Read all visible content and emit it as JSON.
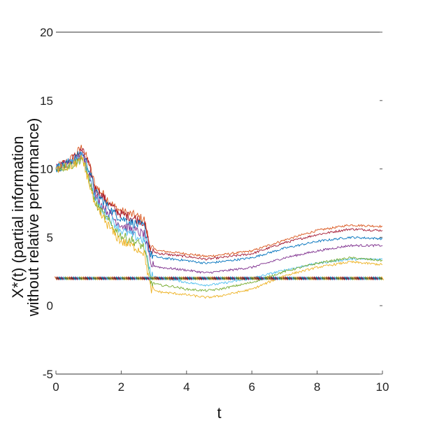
{
  "chart_data": {
    "type": "line",
    "title": "",
    "xlabel": "t",
    "ylabel_lines": [
      "X*(t) (partial information",
      "without relative performance)"
    ],
    "xlim": [
      0,
      10
    ],
    "ylim": [
      -5,
      20
    ],
    "xticks": [
      0,
      2,
      4,
      6,
      8,
      10
    ],
    "yticks": [
      -5,
      0,
      5,
      10,
      15,
      20
    ],
    "grid": false,
    "legend": "none",
    "reference_line": {
      "y": 2,
      "style": "dense-markers"
    },
    "series": [
      {
        "color": "#d95319",
        "points": [
          [
            0,
            10
          ],
          [
            0.5,
            10.8
          ],
          [
            0.8,
            11.6
          ],
          [
            1,
            10.5
          ],
          [
            1.2,
            8.8
          ],
          [
            1.5,
            8
          ],
          [
            1.8,
            7.2
          ],
          [
            2,
            6.9
          ],
          [
            2.4,
            6.6
          ],
          [
            2.7,
            6.3
          ],
          [
            2.9,
            4.2
          ],
          [
            3.2,
            4
          ],
          [
            3.6,
            3.9
          ],
          [
            4,
            3.8
          ],
          [
            4.6,
            3.6
          ],
          [
            5,
            3.7
          ],
          [
            6,
            4
          ],
          [
            7,
            4.8
          ],
          [
            8,
            5.5
          ],
          [
            9,
            5.9
          ],
          [
            10,
            5.8
          ]
        ]
      },
      {
        "color": "#a2142f",
        "points": [
          [
            0,
            10
          ],
          [
            0.5,
            10.7
          ],
          [
            0.8,
            11.4
          ],
          [
            1,
            10.3
          ],
          [
            1.2,
            8.6
          ],
          [
            1.5,
            7.8
          ],
          [
            1.8,
            7
          ],
          [
            2,
            6.7
          ],
          [
            2.4,
            6.4
          ],
          [
            2.7,
            6.1
          ],
          [
            2.9,
            4
          ],
          [
            3.2,
            3.8
          ],
          [
            3.6,
            3.7
          ],
          [
            4,
            3.6
          ],
          [
            4.6,
            3.4
          ],
          [
            5,
            3.5
          ],
          [
            6,
            3.8
          ],
          [
            7,
            4.6
          ],
          [
            8,
            5.2
          ],
          [
            9,
            5.6
          ],
          [
            10,
            5.5
          ]
        ]
      },
      {
        "color": "#0072bd",
        "points": [
          [
            0,
            10
          ],
          [
            0.5,
            10.6
          ],
          [
            0.8,
            11.2
          ],
          [
            1,
            10.1
          ],
          [
            1.2,
            8.3
          ],
          [
            1.5,
            7.5
          ],
          [
            1.8,
            6.7
          ],
          [
            2,
            6.4
          ],
          [
            2.4,
            6
          ],
          [
            2.7,
            5.8
          ],
          [
            2.9,
            3.7
          ],
          [
            3.2,
            3.5
          ],
          [
            3.6,
            3.4
          ],
          [
            4,
            3.3
          ],
          [
            4.6,
            3.1
          ],
          [
            5,
            3.2
          ],
          [
            6,
            3.5
          ],
          [
            7,
            4.2
          ],
          [
            8,
            4.7
          ],
          [
            9,
            5
          ],
          [
            10,
            4.9
          ]
        ]
      },
      {
        "color": "#7e2f8e",
        "points": [
          [
            0,
            10
          ],
          [
            0.5,
            10.5
          ],
          [
            0.8,
            11
          ],
          [
            1,
            9.8
          ],
          [
            1.2,
            8
          ],
          [
            1.5,
            7.1
          ],
          [
            1.8,
            6.3
          ],
          [
            2,
            5.9
          ],
          [
            2.4,
            5.5
          ],
          [
            2.7,
            5.2
          ],
          [
            2.9,
            3
          ],
          [
            3.2,
            2.8
          ],
          [
            3.6,
            2.7
          ],
          [
            4,
            2.6
          ],
          [
            4.6,
            2.4
          ],
          [
            5,
            2.5
          ],
          [
            6,
            2.8
          ],
          [
            7,
            3.5
          ],
          [
            8,
            4
          ],
          [
            9,
            4.4
          ],
          [
            10,
            4.4
          ]
        ]
      },
      {
        "color": "#4dbeee",
        "points": [
          [
            0,
            10
          ],
          [
            0.5,
            10.4
          ],
          [
            0.8,
            10.9
          ],
          [
            1,
            9.6
          ],
          [
            1.2,
            7.8
          ],
          [
            1.5,
            6.8
          ],
          [
            1.8,
            6
          ],
          [
            2,
            5.5
          ],
          [
            2.4,
            5.1
          ],
          [
            2.7,
            4.8
          ],
          [
            2.9,
            2.2
          ],
          [
            3.2,
            2
          ],
          [
            3.6,
            1.9
          ],
          [
            4,
            1.7
          ],
          [
            4.6,
            1.5
          ],
          [
            5,
            1.6
          ],
          [
            6,
            2
          ],
          [
            7,
            2.6
          ],
          [
            8,
            3.1
          ],
          [
            9,
            3.4
          ],
          [
            10,
            3.4
          ]
        ]
      },
      {
        "color": "#77ac30",
        "points": [
          [
            0,
            10
          ],
          [
            0.5,
            10.3
          ],
          [
            0.8,
            10.8
          ],
          [
            1,
            9.4
          ],
          [
            1.2,
            7.5
          ],
          [
            1.5,
            6.5
          ],
          [
            1.8,
            5.6
          ],
          [
            2,
            5.1
          ],
          [
            2.4,
            4.7
          ],
          [
            2.7,
            4.3
          ],
          [
            2.9,
            1.7
          ],
          [
            3.2,
            1.5
          ],
          [
            3.6,
            1.4
          ],
          [
            4,
            1.2
          ],
          [
            4.6,
            1.1
          ],
          [
            5,
            1.2
          ],
          [
            6,
            1.7
          ],
          [
            7,
            2.5
          ],
          [
            8,
            3.1
          ],
          [
            9,
            3.5
          ],
          [
            10,
            3.3
          ]
        ]
      },
      {
        "color": "#edb120",
        "points": [
          [
            0,
            10
          ],
          [
            0.5,
            10.2
          ],
          [
            0.8,
            10.7
          ],
          [
            1,
            9.2
          ],
          [
            1.2,
            7.2
          ],
          [
            1.5,
            6.2
          ],
          [
            1.8,
            5.2
          ],
          [
            2,
            4.7
          ],
          [
            2.4,
            4.3
          ],
          [
            2.7,
            3.9
          ],
          [
            2.9,
            1.2
          ],
          [
            3.2,
            1
          ],
          [
            3.6,
            0.9
          ],
          [
            4,
            0.8
          ],
          [
            4.6,
            0.6
          ],
          [
            5,
            0.7
          ],
          [
            6,
            1.2
          ],
          [
            7,
            2.2
          ],
          [
            8,
            2.8
          ],
          [
            9,
            3.2
          ],
          [
            10,
            3
          ]
        ]
      }
    ]
  }
}
